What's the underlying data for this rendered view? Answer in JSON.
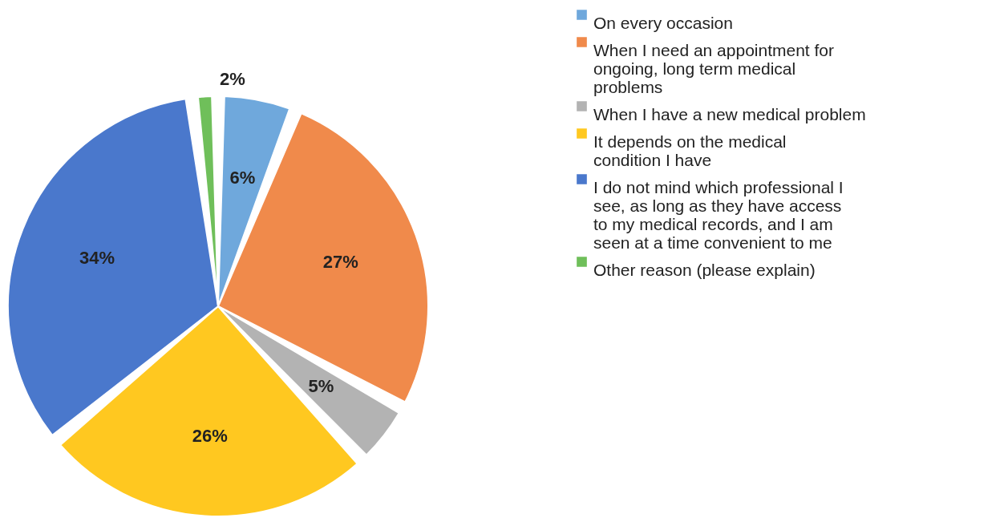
{
  "chart_data": {
    "type": "pie",
    "categories": [
      "On every occasion",
      "When I need an appointment for ongoing, long term medical problems",
      "When I have a new medical problem",
      "It depends on the medical condition I have",
      "I do not mind which professional I see, as long as they have access to my medical records, and I am seen at a time convenient to me",
      "Other reason (please explain)"
    ],
    "values": [
      6,
      27,
      5,
      26,
      34,
      2
    ],
    "value_labels": [
      "6%",
      "27%",
      "5%",
      "26%",
      "34%",
      "2%"
    ],
    "colors": [
      "#6fa8dc",
      "#f08a4b",
      "#b3b3b3",
      "#ffc820",
      "#4a78cc",
      "#6fbf5a"
    ],
    "legend": "right"
  }
}
